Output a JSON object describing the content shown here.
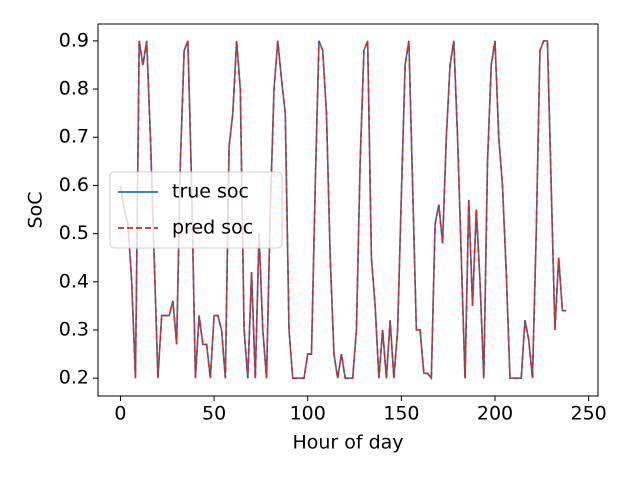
{
  "chart_data": {
    "type": "line",
    "xlabel": "Hour of day",
    "ylabel": "SoC",
    "x": [
      0,
      2,
      4,
      6,
      8,
      10,
      12,
      14,
      16,
      18,
      20,
      22,
      24,
      26,
      28,
      30,
      32,
      34,
      36,
      38,
      40,
      42,
      44,
      46,
      48,
      50,
      52,
      54,
      56,
      58,
      60,
      62,
      64,
      66,
      68,
      70,
      72,
      74,
      76,
      78,
      80,
      82,
      84,
      86,
      88,
      90,
      92,
      94,
      96,
      98,
      100,
      102,
      104,
      106,
      108,
      110,
      112,
      114,
      116,
      118,
      120,
      122,
      124,
      126,
      128,
      130,
      132,
      134,
      136,
      138,
      140,
      142,
      144,
      146,
      148,
      150,
      152,
      154,
      156,
      158,
      160,
      162,
      164,
      166,
      168,
      170,
      172,
      174,
      176,
      178,
      180,
      182,
      184,
      186,
      188,
      190,
      192,
      194,
      196,
      198,
      200,
      202,
      204,
      206,
      208,
      210,
      212,
      214,
      216,
      218,
      220,
      222,
      224,
      226,
      228,
      230,
      232,
      234,
      236,
      238
    ],
    "series": [
      {
        "name": "true soc",
        "color": "#1f77b4",
        "dashed": false,
        "values": [
          0.6,
          0.55,
          0.52,
          0.4,
          0.2,
          0.9,
          0.85,
          0.9,
          0.7,
          0.45,
          0.2,
          0.33,
          0.33,
          0.33,
          0.36,
          0.27,
          0.65,
          0.88,
          0.9,
          0.6,
          0.2,
          0.33,
          0.27,
          0.27,
          0.2,
          0.33,
          0.33,
          0.3,
          0.2,
          0.68,
          0.75,
          0.9,
          0.8,
          0.3,
          0.2,
          0.42,
          0.2,
          0.5,
          0.3,
          0.2,
          0.55,
          0.8,
          0.9,
          0.82,
          0.75,
          0.3,
          0.2,
          0.2,
          0.2,
          0.2,
          0.25,
          0.25,
          0.6,
          0.9,
          0.88,
          0.75,
          0.45,
          0.25,
          0.2,
          0.25,
          0.2,
          0.2,
          0.2,
          0.3,
          0.65,
          0.88,
          0.9,
          0.45,
          0.35,
          0.2,
          0.3,
          0.2,
          0.32,
          0.2,
          0.3,
          0.58,
          0.85,
          0.9,
          0.6,
          0.3,
          0.3,
          0.21,
          0.21,
          0.2,
          0.52,
          0.56,
          0.48,
          0.7,
          0.85,
          0.9,
          0.7,
          0.45,
          0.2,
          0.57,
          0.35,
          0.55,
          0.4,
          0.2,
          0.65,
          0.85,
          0.9,
          0.7,
          0.6,
          0.42,
          0.2,
          0.2,
          0.2,
          0.2,
          0.32,
          0.28,
          0.2,
          0.5,
          0.88,
          0.9,
          0.9,
          0.6,
          0.3,
          0.45,
          0.34,
          0.34
        ]
      },
      {
        "name": "pred soc",
        "color": "#d62728",
        "dashed": true,
        "values": [
          0.6,
          0.55,
          0.52,
          0.4,
          0.2,
          0.9,
          0.85,
          0.9,
          0.7,
          0.45,
          0.2,
          0.33,
          0.33,
          0.33,
          0.36,
          0.27,
          0.65,
          0.88,
          0.9,
          0.6,
          0.2,
          0.33,
          0.27,
          0.27,
          0.2,
          0.33,
          0.33,
          0.3,
          0.2,
          0.68,
          0.75,
          0.9,
          0.8,
          0.3,
          0.2,
          0.42,
          0.2,
          0.5,
          0.3,
          0.2,
          0.55,
          0.8,
          0.9,
          0.82,
          0.75,
          0.3,
          0.2,
          0.2,
          0.2,
          0.2,
          0.25,
          0.25,
          0.6,
          0.9,
          0.88,
          0.75,
          0.45,
          0.25,
          0.2,
          0.25,
          0.2,
          0.2,
          0.2,
          0.3,
          0.65,
          0.88,
          0.9,
          0.45,
          0.35,
          0.2,
          0.3,
          0.2,
          0.32,
          0.2,
          0.3,
          0.58,
          0.85,
          0.9,
          0.6,
          0.3,
          0.3,
          0.21,
          0.21,
          0.2,
          0.52,
          0.56,
          0.48,
          0.7,
          0.85,
          0.9,
          0.7,
          0.45,
          0.2,
          0.57,
          0.35,
          0.55,
          0.4,
          0.2,
          0.65,
          0.85,
          0.9,
          0.7,
          0.6,
          0.42,
          0.2,
          0.2,
          0.2,
          0.2,
          0.32,
          0.28,
          0.2,
          0.5,
          0.88,
          0.9,
          0.9,
          0.6,
          0.3,
          0.45,
          0.34,
          0.34
        ]
      }
    ],
    "xlim": [
      -12,
      255
    ],
    "xticks": [
      0,
      50,
      100,
      150,
      200,
      250
    ],
    "ylim": [
      0.163,
      0.935
    ],
    "yticks": [
      0.2,
      0.3,
      0.4,
      0.5,
      0.6,
      0.7,
      0.8,
      0.9
    ],
    "legend": "center left"
  }
}
